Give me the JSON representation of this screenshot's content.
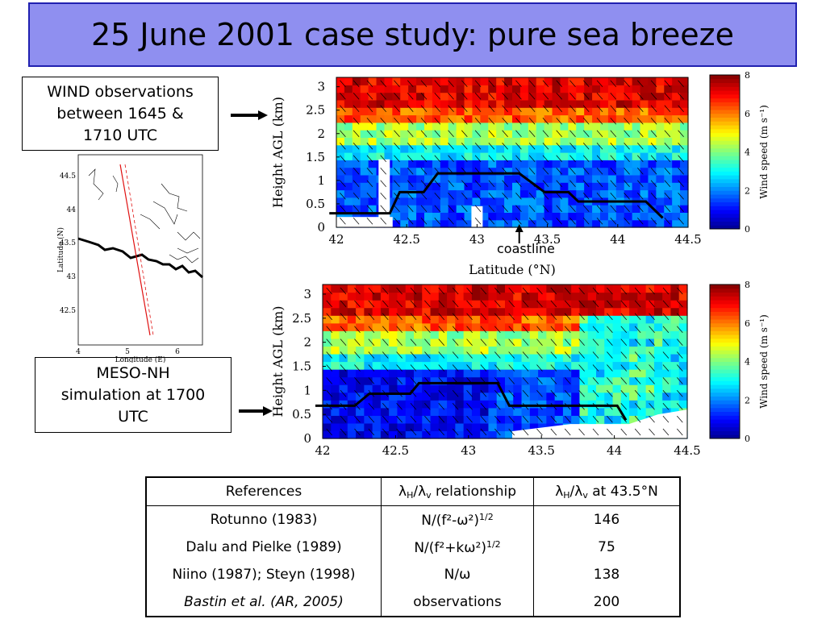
{
  "title": "25 June 2001 case study: pure sea breeze",
  "notes": {
    "observations": [
      "WIND observations",
      "between 1645 &",
      "1710 UTC"
    ],
    "simulation": [
      "MESO-NH",
      "simulation at 1700",
      "UTC"
    ]
  },
  "coastline_label": "coastline",
  "map": {
    "ylabel": "Latitude (N)",
    "xlabel": "Longitude (E)",
    "y_ticks": [
      "44.5",
      "44",
      "43.5",
      "43",
      "42.5"
    ],
    "x_ticks": [
      "4",
      "5",
      "6"
    ]
  },
  "table": {
    "headers": [
      "References",
      "λH/λv relationship",
      "λH/λv at 43.5°N"
    ],
    "rows": [
      [
        "Rotunno (1983)",
        "N/(f²-ω²)^1/2",
        "146"
      ],
      [
        "Dalu and Pielke (1989)",
        "N/(f²+kω²)^1/2",
        "75"
      ],
      [
        "Niino (1987); Steyn (1998)",
        "N/ω",
        "138"
      ],
      [
        "Bastin et al. (AR, 2005)",
        "observations",
        "200"
      ]
    ]
  },
  "chart_data": [
    {
      "type": "heatmap",
      "title": "",
      "xlabel": "Latitude (°N)",
      "ylabel": "Height AGL (km)",
      "xlim": [
        42,
        44.5
      ],
      "ylim": [
        0,
        3.2
      ],
      "x_ticks": [
        "42",
        "42.5",
        "43",
        "43.5",
        "44",
        "44.5"
      ],
      "y_ticks": [
        "0",
        "0.5",
        "1",
        "1.5",
        "2",
        "2.5",
        "3"
      ],
      "colorbar": {
        "label": "Wind speed (m s⁻¹)",
        "range": [
          0,
          8
        ],
        "ticks": [
          "0",
          "2",
          "4",
          "6",
          "8"
        ]
      },
      "sea_breeze_depth": {
        "x": [
          41.95,
          42.38,
          42.45,
          42.55,
          42.62,
          42.72,
          43.3,
          43.48,
          43.65,
          43.72,
          44.2,
          44.32
        ],
        "y": [
          0.3,
          0.3,
          0.75,
          0.75,
          0.75,
          1.15,
          1.15,
          0.75,
          0.75,
          0.55,
          0.55,
          0.2
        ]
      },
      "coastline_lat": 43.3
    },
    {
      "type": "heatmap",
      "title": "",
      "xlabel": "",
      "ylabel": "Height AGL (km)",
      "xlim": [
        42,
        44.5
      ],
      "ylim": [
        0,
        3.2
      ],
      "x_ticks": [
        "42",
        "42.5",
        "43",
        "43.5",
        "44",
        "44.5"
      ],
      "y_ticks": [
        "0",
        "0.5",
        "1",
        "1.5",
        "2",
        "2.5",
        "3"
      ],
      "colorbar": {
        "label": "Wind speed (m s⁻¹)",
        "range": [
          0,
          8
        ],
        "ticks": [
          "0",
          "2",
          "4",
          "6",
          "8"
        ]
      },
      "sea_breeze_depth": {
        "x": [
          41.95,
          42.22,
          42.32,
          42.6,
          42.66,
          43.2,
          43.28,
          44.02,
          44.08
        ],
        "y": [
          0.68,
          0.68,
          0.93,
          0.93,
          1.15,
          1.15,
          0.68,
          0.68,
          0.38
        ]
      }
    }
  ]
}
